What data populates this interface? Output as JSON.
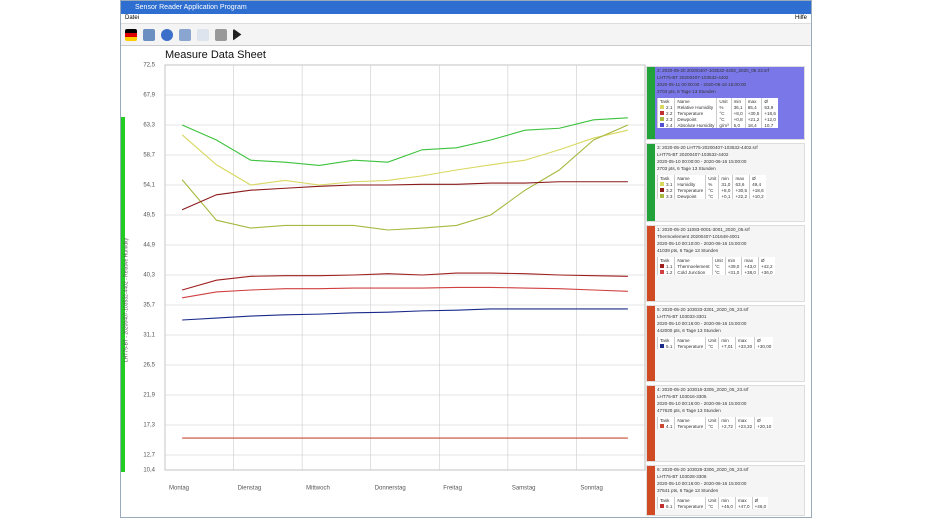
{
  "window": {
    "title": "Sensor Reader Application Program",
    "menu": "Datei",
    "help": "Hilfe"
  },
  "chart_data": {
    "type": "line",
    "title": "Measure Data Sheet",
    "y_label": "LHT75-BT - 20200407-103532-4402 - Relative Humidity",
    "grid": true,
    "categories": [
      "Montag",
      null,
      "Dienstag",
      null,
      "Mittwoch",
      null,
      "Donnerstag",
      null,
      "Freitag",
      null,
      "Samstag",
      null,
      "Sonntag",
      null
    ],
    "ylim": [
      10.4,
      72.5
    ],
    "yticks": [
      {
        "value": 10.4,
        "label": "10,4"
      },
      {
        "value": 12.7,
        "label": "12,7"
      },
      {
        "value": 17.3,
        "label": "17,3"
      },
      {
        "value": 21.9,
        "label": "21,9"
      },
      {
        "value": 26.5,
        "label": "26,5"
      },
      {
        "value": 31.1,
        "label": "31,1"
      },
      {
        "value": 35.7,
        "label": "35,7"
      },
      {
        "value": 40.3,
        "label": "40,3"
      },
      {
        "value": 44.9,
        "label": "44,9"
      },
      {
        "value": 49.5,
        "label": "49,5"
      },
      {
        "value": 54.1,
        "label": "54,1"
      },
      {
        "value": 58.7,
        "label": "58,7"
      },
      {
        "value": 63.3,
        "label": "63,3"
      },
      {
        "value": 67.9,
        "label": "67,9"
      },
      {
        "value": 72.5,
        "label": "72,5"
      }
    ],
    "series": [
      {
        "color": "#3cc23c",
        "values": [
          63.3,
          61.0,
          57.9,
          57.6,
          57.1,
          57.9,
          57.6,
          59.5,
          59.8,
          61.0,
          62.5,
          62.8,
          64.1,
          64.4
        ]
      },
      {
        "color": "#d8d860",
        "values": [
          61.8,
          57.2,
          54.1,
          54.8,
          54.1,
          54.6,
          54.8,
          55.5,
          56.4,
          57.2,
          57.9,
          59.5,
          61.3,
          62.5
        ]
      },
      {
        "color": "#a8b840",
        "values": [
          54.9,
          48.7,
          47.5,
          47.9,
          47.9,
          47.9,
          47.2,
          47.5,
          47.9,
          49.5,
          53.3,
          56.4,
          61.0,
          63.3
        ]
      },
      {
        "color": "#8b1a1a",
        "values": [
          50.3,
          52.6,
          53.3,
          53.6,
          53.9,
          54.1,
          54.1,
          54.2,
          54.2,
          54.4,
          54.4,
          54.6,
          54.6,
          54.6
        ]
      },
      {
        "color": "#a02020",
        "values": [
          38.0,
          39.5,
          40.1,
          40.2,
          40.2,
          40.3,
          40.5,
          40.3,
          40.6,
          40.6,
          40.5,
          40.3,
          40.2,
          40.1
        ]
      },
      {
        "color": "#d04040",
        "values": [
          36.8,
          37.7,
          38.0,
          38.2,
          38.2,
          38.3,
          38.3,
          38.3,
          38.4,
          38.4,
          38.3,
          38.2,
          38.0,
          37.8
        ]
      },
      {
        "color": "#1a2a8a",
        "values": [
          33.4,
          33.7,
          34.0,
          34.2,
          34.3,
          34.5,
          34.6,
          34.8,
          34.9,
          35.1,
          35.1,
          35.1,
          35.1,
          35.1
        ]
      },
      {
        "color": "#c84a30",
        "values": [
          15.3,
          15.3,
          15.3,
          15.3,
          15.3,
          15.3,
          15.3,
          15.3,
          15.3,
          15.3,
          15.3,
          15.3,
          15.3,
          15.3
        ]
      }
    ]
  },
  "panels": [
    {
      "bar": "#22a33a",
      "head": "#7a78e8",
      "header": "2: 2020-05-20 20200407-103532-4402_2020_05 23.srf",
      "lines": [
        "LHT75-BT 20200407-103532-4402",
        "2020-05-11 00:00:00 - 2020-06-16 15:00:00",
        "2703 pts, 6 Tage 13 Stunden"
      ],
      "columns": [
        "Task",
        "Name",
        "Unit",
        "min",
        "max",
        "Ø"
      ],
      "rows": [
        [
          "2.1",
          "Relative Humidity",
          "%",
          "36,1",
          "65,4",
          "53,9"
        ],
        [
          "2.2",
          "Temperature",
          "°C",
          "+8,0",
          "+30,5",
          "+18,6"
        ],
        [
          "2.3",
          "Dewpoint",
          "°C",
          "+0,8",
          "+21,2",
          "+12,0"
        ],
        [
          "2.4",
          "Absolute Humidity",
          "g/m³",
          "5,0",
          "18,4",
          "10,7"
        ]
      ],
      "swatches": [
        "#d8d860",
        "#c03030",
        "#a8b840",
        "#5050d0"
      ]
    },
    {
      "bar": "#22a33a",
      "head": null,
      "header": "3: 2020-05-20 LHT75-20200407-103532-4402.srf",
      "lines": [
        "LHT75-BT 20200407-103532-4402",
        "2020-05-10 00:00:00 - 2020-06-16 15:00:00",
        "2703 pts, 6 Tage 13 Stunden"
      ],
      "columns": [
        "Task",
        "Name",
        "Unit",
        "min",
        "max",
        "Ø"
      ],
      "rows": [
        [
          "3.1",
          "Humidity",
          "%",
          "31,0",
          "63,6",
          "49,4"
        ],
        [
          "3.2",
          "Temperature",
          "°C",
          "+8,0",
          "+30,5",
          "+18,6"
        ],
        [
          "3.3",
          "Dewpoint",
          "°C",
          "+0,1",
          "+22,2",
          "+10,2"
        ]
      ],
      "swatches": [
        "#d8d860",
        "#8b1a1a",
        "#a8b840"
      ]
    },
    {
      "bar": "#d04a24",
      "head": null,
      "header": "1: 2020-05-20 11083-0001-3001_2020_05.srf",
      "lines": [
        "Thermoelement 20200407-101648-4001",
        "2020-05-10 00:10:00 - 2020-06-16 15:00:00",
        "41039 pts, 6 Tage 13 Stunden"
      ],
      "columns": [
        "Task",
        "Name",
        "Unit",
        "min",
        "max",
        "Ø"
      ],
      "rows": [
        [
          "1.1",
          "Thermoelement",
          "°C",
          "+39,0",
          "+43,0",
          "+42,2"
        ],
        [
          "1.2",
          "Cold Junction",
          "°C",
          "+31,0",
          "+38,0",
          "+36,0"
        ]
      ],
      "swatches": [
        "#a02020",
        "#d04040"
      ]
    },
    {
      "bar": "#d04a24",
      "head": null,
      "header": "5: 2020-05-20 103033-3301_2020_05_23.srf",
      "lines": [
        "LHT75-BT 103033-3301",
        "2020-05-10 00:16:00 - 2020-06-16 15:00:00",
        "442000 pts, 6 Tage 13 Stunden"
      ],
      "columns": [
        "Task",
        "Name",
        "Unit",
        "min",
        "max",
        "Ø"
      ],
      "rows": [
        [
          "5.1",
          "Temperature",
          "°C",
          "+7,01",
          "+33,30",
          "+30,00"
        ]
      ],
      "swatches": [
        "#1a2a8a"
      ]
    },
    {
      "bar": "#d04a24",
      "head": null,
      "header": "4: 2020-05-20 103016-3305_2020_05_23.srf",
      "lines": [
        "LHT75-BT 103016-3305",
        "2020-05-10 00:16:00 - 2020-06-16 15:00:00",
        "477620 pts, 6 Tage 13 Stunden"
      ],
      "columns": [
        "Task",
        "Name",
        "Unit",
        "min",
        "max",
        "Ø"
      ],
      "rows": [
        [
          "4.1",
          "Temperature",
          "°C",
          "+2,72",
          "+23,32",
          "+20,10"
        ]
      ],
      "swatches": [
        "#c84a30"
      ]
    },
    {
      "bar": "#d04a24",
      "head": null,
      "header": "6: 2020-05-20 103028-3306_2020_05_23.srf",
      "lines": [
        "LHT75-BT 103028-3306",
        "2020-05-10 00:16:00 - 2020-06-16 15:00:00",
        "37541 pts, 6 Tage 13 Stunden"
      ],
      "columns": [
        "Task",
        "Name",
        "Unit",
        "min",
        "max",
        "Ø"
      ],
      "rows": [
        [
          "6.1",
          "Temperature",
          "°C",
          "+45,0",
          "+47,0",
          "+46,0"
        ]
      ],
      "swatches": [
        "#c03030"
      ]
    }
  ]
}
